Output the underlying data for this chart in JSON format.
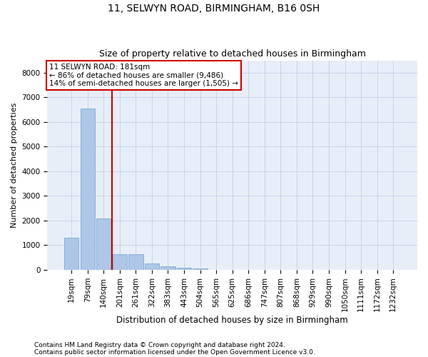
{
  "title1": "11, SELWYN ROAD, BIRMINGHAM, B16 0SH",
  "title2": "Size of property relative to detached houses in Birmingham",
  "xlabel": "Distribution of detached houses by size in Birmingham",
  "ylabel": "Number of detached properties",
  "footnote1": "Contains HM Land Registry data © Crown copyright and database right 2024.",
  "footnote2": "Contains public sector information licensed under the Open Government Licence v3.0.",
  "annotation_line1": "11 SELWYN ROAD: 181sqm",
  "annotation_line2": "← 86% of detached houses are smaller (9,486)",
  "annotation_line3": "14% of semi-detached houses are larger (1,505) →",
  "bar_color": "#aec6e8",
  "bar_edge_color": "#7aaad0",
  "vline_color": "#cc0000",
  "annotation_box_edgecolor": "#cc0000",
  "grid_color": "#c8d4e8",
  "background_color": "#e8eef8",
  "categories": [
    "19sqm",
    "79sqm",
    "140sqm",
    "201sqm",
    "261sqm",
    "322sqm",
    "383sqm",
    "443sqm",
    "504sqm",
    "565sqm",
    "625sqm",
    "686sqm",
    "747sqm",
    "807sqm",
    "868sqm",
    "929sqm",
    "990sqm",
    "1050sqm",
    "1111sqm",
    "1172sqm",
    "1232sqm"
  ],
  "values": [
    1300,
    6550,
    2080,
    630,
    630,
    260,
    140,
    100,
    70,
    0,
    0,
    0,
    0,
    0,
    0,
    0,
    0,
    0,
    0,
    0,
    0
  ],
  "ylim": [
    0,
    8500
  ],
  "yticks": [
    0,
    1000,
    2000,
    3000,
    4000,
    5000,
    6000,
    7000,
    8000
  ],
  "vline_position": 2.5,
  "figsize": [
    6.0,
    5.0
  ],
  "dpi": 100,
  "title1_fontsize": 10,
  "title2_fontsize": 9,
  "xlabel_fontsize": 8.5,
  "ylabel_fontsize": 8,
  "tick_fontsize": 7.5,
  "annotation_fontsize": 7.5,
  "footnote_fontsize": 6.5
}
